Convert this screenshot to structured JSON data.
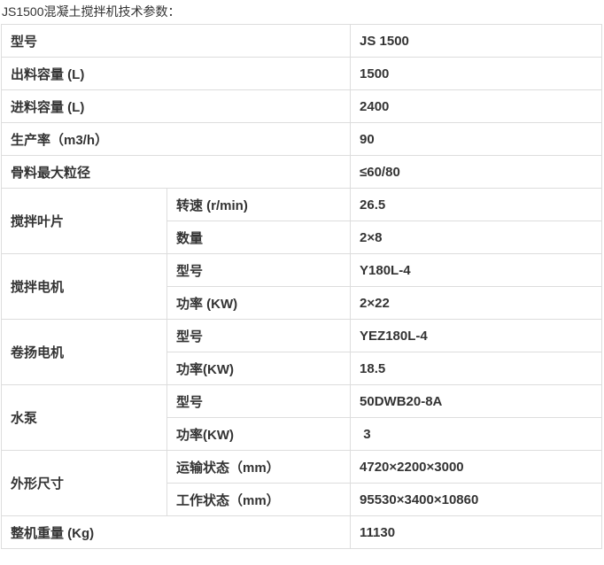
{
  "page": {
    "title": "JS1500混凝土搅拌机技术参数："
  },
  "colors": {
    "text": "#333333",
    "border": "#dddddd",
    "background": "#ffffff"
  },
  "table": {
    "rows": [
      {
        "type": "simple",
        "label": "型号",
        "value": "JS 1500"
      },
      {
        "type": "simple",
        "label": "出料容量 (L)",
        "value": "1500"
      },
      {
        "type": "simple",
        "label": "进料容量 (L)",
        "value": "2400"
      },
      {
        "type": "simple",
        "label": "生产率（m3/h）",
        "value": "90"
      },
      {
        "type": "simple",
        "label": "骨料最大粒径",
        "value": "≤60/80"
      },
      {
        "type": "group",
        "label": "搅拌叶片",
        "sub": [
          {
            "label": "转速 (r/min)",
            "value": "26.5"
          },
          {
            "label": "数量",
            "value": "2×8"
          }
        ]
      },
      {
        "type": "group",
        "label": "搅拌电机",
        "sub": [
          {
            "label": "型号",
            "value": "Y180L-4"
          },
          {
            "label": "功率 (KW)",
            "value": "2×22"
          }
        ]
      },
      {
        "type": "group",
        "label": "卷扬电机",
        "sub": [
          {
            "label": "型号",
            "value": "YEZ180L-4"
          },
          {
            "label": "功率(KW)",
            "value": "18.5"
          }
        ]
      },
      {
        "type": "group",
        "label": "水泵",
        "sub": [
          {
            "label": "型号",
            "value": "50DWB20-8A"
          },
          {
            "label": "功率(KW)",
            "value": " 3"
          }
        ]
      },
      {
        "type": "group",
        "label": "外形尺寸",
        "sub": [
          {
            "label": "运输状态（mm）",
            "value": "4720×2200×3000"
          },
          {
            "label": "工作状态（mm）",
            "value": "95530×3400×10860"
          }
        ]
      },
      {
        "type": "simple",
        "label": "整机重量 (Kg)",
        "value": "11130"
      }
    ]
  }
}
